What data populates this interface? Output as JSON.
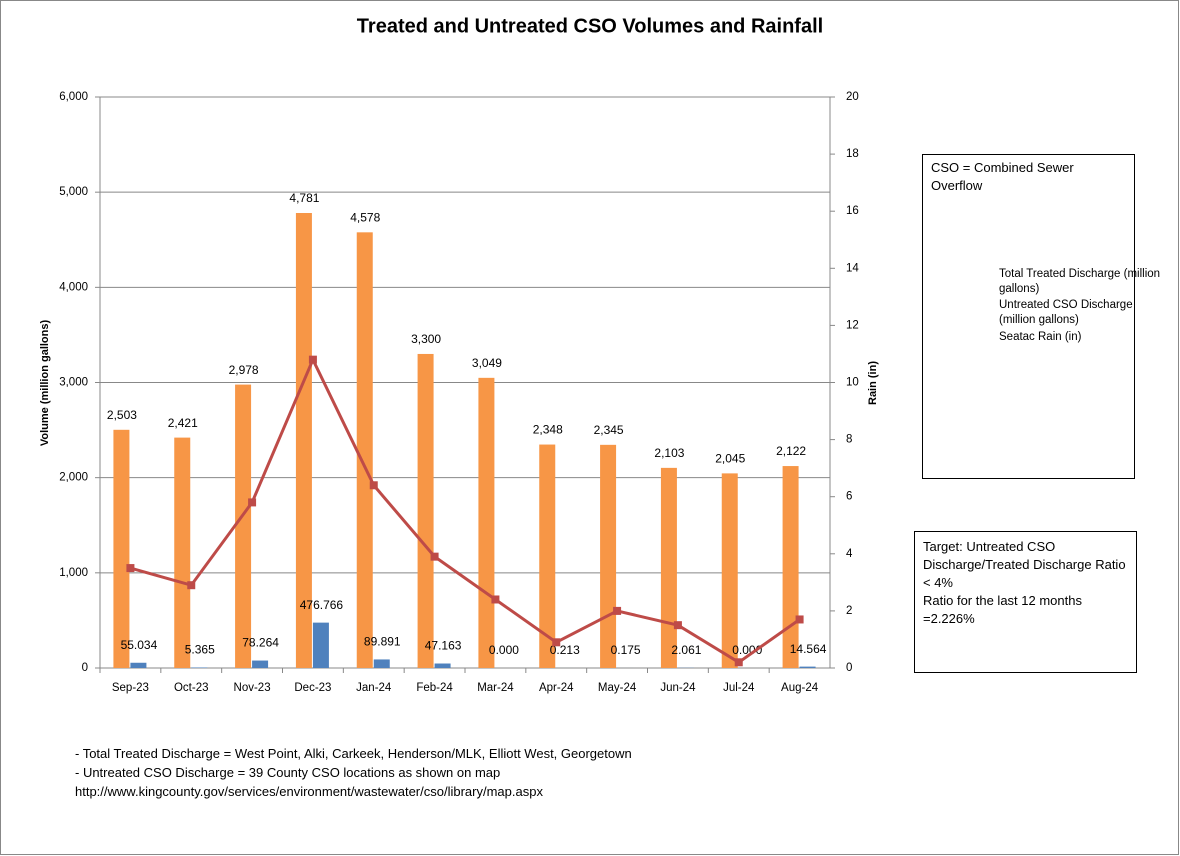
{
  "chart_data": {
    "type": "bar",
    "title": "Treated and Untreated CSO Volumes and Rainfall",
    "ylabel": "Volume (million gallons)",
    "y2label": "Rain (in)",
    "categories": [
      "Sep-23",
      "Oct-23",
      "Nov-23",
      "Dec-23",
      "Jan-24",
      "Feb-24",
      "Mar-24",
      "Apr-24",
      "May-24",
      "Jun-24",
      "Jul-24",
      "Aug-24"
    ],
    "series": [
      {
        "name": "Total Treated Discharge (million gallons)",
        "color": "#f79646",
        "type": "bar",
        "values": [
          2503,
          2421,
          2978,
          4781,
          4578,
          3300,
          3049,
          2348,
          2345,
          2103,
          2045,
          2122
        ],
        "value_labels": [
          "2,503",
          "2,421",
          "2,978",
          "4,781",
          "4,578",
          "3,300",
          "3,049",
          "2,348",
          "2,345",
          "2,103",
          "2,045",
          "2,122"
        ]
      },
      {
        "name": "Untreated CSO Discharge (million gallons)",
        "color": "#4f81bd",
        "type": "bar",
        "values": [
          55.034,
          5.365,
          78.264,
          476.766,
          89.891,
          47.163,
          0,
          0.213,
          0.175,
          2.061,
          0,
          14.564
        ],
        "value_labels": [
          "55.034",
          "5.365",
          "78.264",
          "476.766",
          "89.891",
          "47.163",
          "0.000",
          "0.213",
          "0.175",
          "2.061",
          "0.000",
          "14.564"
        ]
      },
      {
        "name": "Seatac Rain (in)",
        "color": "#be4b48",
        "type": "line",
        "axis": "y2",
        "values": [
          3.5,
          2.9,
          5.8,
          10.8,
          6.4,
          3.9,
          2.4,
          0.9,
          2.0,
          1.5,
          0.2,
          1.7
        ]
      }
    ],
    "ylim": [
      0,
      6000
    ],
    "yticks": [
      0,
      {
        "value": 1000,
        "label": "1,000"
      },
      {
        "value": 2000,
        "label": "2,000"
      },
      {
        "value": 3000,
        "label": "3,000"
      },
      {
        "value": 4000,
        "label": "4,000"
      },
      {
        "value": 5000,
        "label": "5,000"
      },
      {
        "value": 6000,
        "label": "6,000"
      }
    ],
    "y2lim": [
      0,
      20
    ],
    "y2ticks": [
      0,
      2,
      4,
      6,
      8,
      10,
      12,
      14,
      16,
      18,
      20
    ],
    "grid": true,
    "legend_note": "CSO = Combined Sewer Overflow",
    "target_note": [
      "Target: Untreated CSO Discharge/Treated Discharge Ratio < 4%",
      "Ratio for the last 12 months =2.226%"
    ],
    "footnotes": [
      "- Total Treated Discharge = West Point, Alki, Carkeek, Henderson/MLK, Elliott West, Georgetown",
      "- Untreated CSO Discharge = 39  County CSO locations as shown on map",
      "http://www.kingcounty.gov/services/environment/wastewater/cso/library/map.aspx"
    ]
  }
}
